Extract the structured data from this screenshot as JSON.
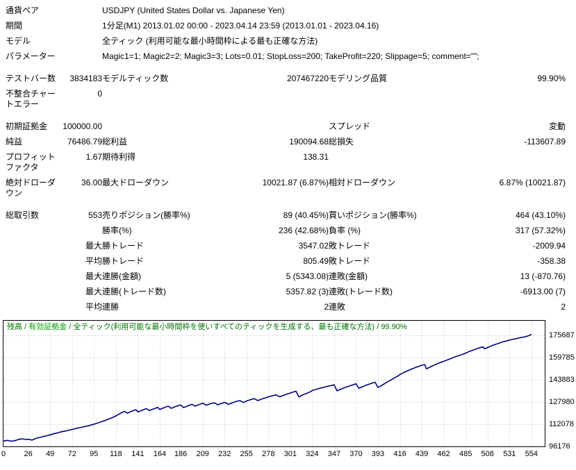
{
  "report": {
    "head": [
      {
        "label": "通貨ペア",
        "value": "USDJPY (United States Dollar vs. Japanese Yen)"
      },
      {
        "label": "期間",
        "value": "1分足(M1) 2013.01.02 00:00 - 2023.04.14 23:59 (2013.01.01 - 2023.04.16)"
      },
      {
        "label": "モデル",
        "value": "全ティック (利用可能な最小時間枠による最も正確な方法)"
      },
      {
        "label": "パラメーター",
        "value": "Magic1=1; Magic2=2; Magic3=3; Lots=0.01; StopLoss=200; TakeProfit=220; Slippage=5; comment=\"\";"
      }
    ],
    "stats": [
      {
        "gap": true,
        "cells": [
          "テストバー数",
          "3834183",
          "モデルティック数",
          "207467220",
          "モデリング品質",
          "99.90%"
        ]
      },
      {
        "gap": false,
        "cells": [
          "不整合チャートエラー",
          "0",
          "",
          "",
          "",
          ""
        ]
      },
      {
        "gap": true,
        "cells": [
          "初期証拠金",
          "100000.00",
          "",
          "",
          "スプレッド",
          "変動"
        ]
      },
      {
        "gap": false,
        "cells": [
          "純益",
          "76486.79",
          "総利益",
          "190094.68",
          "総損失",
          "-113607.89"
        ]
      },
      {
        "gap": false,
        "cells": [
          "プロフィットファクタ",
          "1.67",
          "期待利得",
          "138.31",
          "",
          ""
        ]
      },
      {
        "gap": false,
        "cells": [
          "絶対ドローダウン",
          "36.00",
          "最大ドローダウン",
          "10021.87 (6.87%)",
          "相対ドローダウン",
          "6.87% (10021.87)"
        ]
      },
      {
        "gap": true,
        "cells": [
          "総取引数",
          "553",
          "売りポジション(勝率%)",
          "89 (40.45%)",
          "買いポジション(勝率%)",
          "464 (43.10%)"
        ]
      },
      {
        "gap": false,
        "cells": [
          "",
          "",
          "勝率(%)",
          "236 (42.68%)",
          "負率 (%)",
          "317 (57.32%)"
        ]
      },
      {
        "gap": false,
        "cells": [
          "",
          "最大",
          "勝トレード",
          "3547.02",
          "敗トレード",
          "-2009.94"
        ]
      },
      {
        "gap": false,
        "cells": [
          "",
          "平均",
          "勝トレード",
          "805.49",
          "敗トレード",
          "-358.38"
        ]
      },
      {
        "gap": false,
        "cells": [
          "",
          "最大",
          "連勝(金額)",
          "5 (5343.08)",
          "連敗(金額)",
          "13 (-870.76)"
        ]
      },
      {
        "gap": false,
        "cells": [
          "",
          "最大",
          "連勝(トレード数)",
          "5357.82 (3)",
          "連敗(トレード数)",
          "-6913.00 (7)"
        ]
      },
      {
        "gap": false,
        "cells": [
          "",
          "平均",
          "連勝",
          "2",
          "連敗",
          "2"
        ]
      }
    ]
  },
  "chart_data": {
    "type": "line",
    "title": "",
    "xlabel": "",
    "ylabel": "",
    "caption": {
      "balance": "残高",
      "equity": "有効証拠金",
      "model": "全ティック(利用可能な最小時間枠を使いすべてのティックを生成する、最も正確な方法)",
      "quality": "99.90%",
      "sep": " / "
    },
    "legend_position": "top-left-inside",
    "grid": true,
    "x_ticks": [
      0,
      26,
      49,
      72,
      95,
      118,
      141,
      164,
      186,
      209,
      232,
      255,
      278,
      301,
      324,
      347,
      370,
      393,
      416,
      439,
      462,
      485,
      508,
      531,
      554
    ],
    "y_ticks": [
      175687,
      159785,
      143883,
      127980,
      112078,
      96176
    ],
    "xlim": [
      0,
      568
    ],
    "ylim": [
      96176,
      186176
    ],
    "colors": {
      "balance_line": "#000080",
      "grid": "#c8c8c8",
      "border": "#000000",
      "caption_green": "#007000",
      "equity_green": "#00a000"
    },
    "series": [
      {
        "name": "残高",
        "points": [
          [
            0,
            100000
          ],
          [
            4,
            100500
          ],
          [
            8,
            99900
          ],
          [
            12,
            100300
          ],
          [
            16,
            101200
          ],
          [
            20,
            101600
          ],
          [
            24,
            101100
          ],
          [
            26,
            101300
          ],
          [
            30,
            100700
          ],
          [
            34,
            101900
          ],
          [
            38,
            102600
          ],
          [
            42,
            103300
          ],
          [
            46,
            103900
          ],
          [
            49,
            104500
          ],
          [
            53,
            105300
          ],
          [
            57,
            105900
          ],
          [
            61,
            106700
          ],
          [
            65,
            107200
          ],
          [
            69,
            107800
          ],
          [
            72,
            108300
          ],
          [
            76,
            109000
          ],
          [
            80,
            109600
          ],
          [
            84,
            110200
          ],
          [
            88,
            110800
          ],
          [
            92,
            111500
          ],
          [
            95,
            112100
          ],
          [
            99,
            113000
          ],
          [
            103,
            113900
          ],
          [
            107,
            114800
          ],
          [
            111,
            115900
          ],
          [
            115,
            117000
          ],
          [
            118,
            118000
          ],
          [
            121,
            119200
          ],
          [
            124,
            120400
          ],
          [
            127,
            121300
          ],
          [
            130,
            120000
          ],
          [
            133,
            120900
          ],
          [
            136,
            121800
          ],
          [
            139,
            122500
          ],
          [
            141,
            120900
          ],
          [
            144,
            121700
          ],
          [
            147,
            122500
          ],
          [
            150,
            123300
          ],
          [
            153,
            121900
          ],
          [
            156,
            122700
          ],
          [
            159,
            123400
          ],
          [
            162,
            124100
          ],
          [
            164,
            122600
          ],
          [
            167,
            123500
          ],
          [
            170,
            124300
          ],
          [
            173,
            125000
          ],
          [
            176,
            123400
          ],
          [
            179,
            124300
          ],
          [
            182,
            125100
          ],
          [
            186,
            125800
          ],
          [
            189,
            123900
          ],
          [
            192,
            124800
          ],
          [
            195,
            125600
          ],
          [
            198,
            126300
          ],
          [
            201,
            124900
          ],
          [
            204,
            125800
          ],
          [
            207,
            126500
          ],
          [
            209,
            127100
          ],
          [
            213,
            125700
          ],
          [
            217,
            126700
          ],
          [
            221,
            127400
          ],
          [
            225,
            126000
          ],
          [
            229,
            127000
          ],
          [
            232,
            127700
          ],
          [
            236,
            126300
          ],
          [
            240,
            127400
          ],
          [
            244,
            128300
          ],
          [
            248,
            129000
          ],
          [
            252,
            127600
          ],
          [
            255,
            128700
          ],
          [
            259,
            129600
          ],
          [
            263,
            130400
          ],
          [
            267,
            129000
          ],
          [
            271,
            130100
          ],
          [
            275,
            131000
          ],
          [
            278,
            131700
          ],
          [
            282,
            132400
          ],
          [
            286,
            133100
          ],
          [
            290,
            131700
          ],
          [
            294,
            132800
          ],
          [
            298,
            133700
          ],
          [
            301,
            134400
          ],
          [
            304,
            135100
          ],
          [
            307,
            135700
          ],
          [
            310,
            131600
          ],
          [
            313,
            132700
          ],
          [
            316,
            133600
          ],
          [
            319,
            134400
          ],
          [
            322,
            135300
          ],
          [
            324,
            136200
          ],
          [
            328,
            137000
          ],
          [
            332,
            137800
          ],
          [
            336,
            138500
          ],
          [
            340,
            139200
          ],
          [
            344,
            139800
          ],
          [
            347,
            140300
          ],
          [
            350,
            136000
          ],
          [
            353,
            136900
          ],
          [
            356,
            137700
          ],
          [
            359,
            138500
          ],
          [
            362,
            139200
          ],
          [
            365,
            139900
          ],
          [
            368,
            140600
          ],
          [
            370,
            141100
          ],
          [
            373,
            137700
          ],
          [
            376,
            138700
          ],
          [
            379,
            139600
          ],
          [
            382,
            140400
          ],
          [
            385,
            141100
          ],
          [
            388,
            141700
          ],
          [
            390,
            142100
          ],
          [
            393,
            138400
          ],
          [
            396,
            139500
          ],
          [
            399,
            140700
          ],
          [
            402,
            141900
          ],
          [
            405,
            143100
          ],
          [
            408,
            144300
          ],
          [
            411,
            145500
          ],
          [
            414,
            146700
          ],
          [
            416,
            147600
          ],
          [
            419,
            148700
          ],
          [
            422,
            149700
          ],
          [
            425,
            150600
          ],
          [
            428,
            151500
          ],
          [
            431,
            152300
          ],
          [
            434,
            153100
          ],
          [
            437,
            153800
          ],
          [
            439,
            154300
          ],
          [
            442,
            154800
          ],
          [
            444,
            151700
          ],
          [
            447,
            152800
          ],
          [
            450,
            153800
          ],
          [
            453,
            154700
          ],
          [
            456,
            155600
          ],
          [
            459,
            156400
          ],
          [
            462,
            157100
          ],
          [
            465,
            157900
          ],
          [
            468,
            158700
          ],
          [
            471,
            159500
          ],
          [
            474,
            160300
          ],
          [
            477,
            161000
          ],
          [
            480,
            161700
          ],
          [
            483,
            162400
          ],
          [
            485,
            163000
          ],
          [
            488,
            163900
          ],
          [
            491,
            164700
          ],
          [
            494,
            165500
          ],
          [
            497,
            166200
          ],
          [
            500,
            166900
          ],
          [
            503,
            167500
          ],
          [
            505,
            166100
          ],
          [
            508,
            167000
          ],
          [
            511,
            167900
          ],
          [
            514,
            168700
          ],
          [
            517,
            169400
          ],
          [
            520,
            170100
          ],
          [
            523,
            170800
          ],
          [
            526,
            171400
          ],
          [
            529,
            171900
          ],
          [
            531,
            172300
          ],
          [
            534,
            172800
          ],
          [
            537,
            173200
          ],
          [
            540,
            173700
          ],
          [
            543,
            174100
          ],
          [
            546,
            174500
          ],
          [
            549,
            175000
          ],
          [
            552,
            175700
          ],
          [
            554,
            176487
          ]
        ]
      }
    ]
  }
}
